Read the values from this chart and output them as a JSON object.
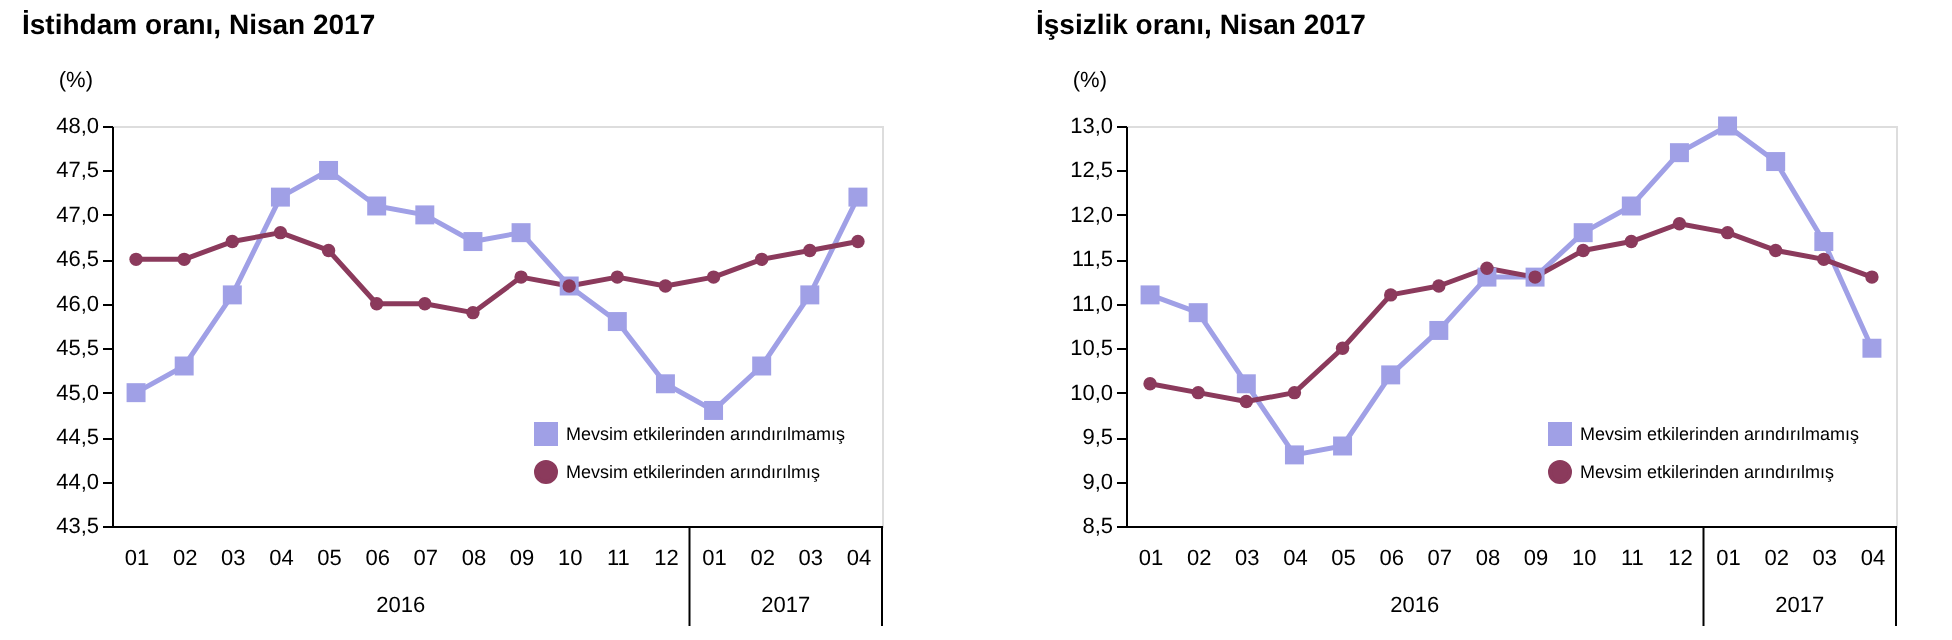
{
  "chart_data": [
    {
      "type": "line",
      "title": "İstihdam oranı, Nisan 2017",
      "ylabel": "(%)",
      "categories": [
        "01",
        "02",
        "03",
        "04",
        "05",
        "06",
        "07",
        "08",
        "09",
        "10",
        "11",
        "12",
        "01",
        "02",
        "03",
        "04"
      ],
      "series": [
        {
          "name": "Mevsim etkilerinden arındırılmamış",
          "color": "#a0a0e6",
          "marker": "square",
          "values": [
            45.0,
            45.3,
            46.1,
            47.2,
            47.5,
            47.1,
            47.0,
            46.7,
            46.8,
            46.2,
            45.8,
            45.1,
            44.8,
            45.3,
            46.1,
            47.2
          ]
        },
        {
          "name": "Mevsim etkilerinden arındırılmış",
          "color": "#8b3a5c",
          "marker": "circle",
          "values": [
            46.5,
            46.5,
            46.7,
            46.8,
            46.6,
            46.0,
            46.0,
            45.9,
            46.3,
            46.2,
            46.3,
            46.2,
            46.3,
            46.5,
            46.6,
            46.7
          ]
        }
      ],
      "ylim": [
        43.5,
        48.0
      ],
      "yticks": [
        {
          "value": 43.5,
          "label": "43,5"
        },
        {
          "value": 44.0,
          "label": "44,0"
        },
        {
          "value": 44.5,
          "label": "44,5"
        },
        {
          "value": 45.0,
          "label": "45,0"
        },
        {
          "value": 45.5,
          "label": "45,5"
        },
        {
          "value": 46.0,
          "label": "46,0"
        },
        {
          "value": 46.5,
          "label": "46,5"
        },
        {
          "value": 47.0,
          "label": "47,0"
        },
        {
          "value": 47.5,
          "label": "47,5"
        },
        {
          "value": 48.0,
          "label": "48,0"
        }
      ],
      "annotations": [
        "2016",
        "2017"
      ],
      "legend": "bottom right",
      "grid": false
    },
    {
      "type": "line",
      "title": "İşsizlik oranı, Nisan 2017",
      "ylabel": "(%)",
      "categories": [
        "01",
        "02",
        "03",
        "04",
        "05",
        "06",
        "07",
        "08",
        "09",
        "10",
        "11",
        "12",
        "01",
        "02",
        "03",
        "04"
      ],
      "series": [
        {
          "name": "Mevsim etkilerinden arındırılmamış",
          "color": "#a0a0e6",
          "marker": "square",
          "values": [
            11.1,
            10.9,
            10.1,
            9.3,
            9.4,
            10.2,
            10.7,
            11.3,
            11.3,
            11.8,
            12.1,
            12.7,
            13.0,
            12.6,
            11.7,
            10.5
          ]
        },
        {
          "name": "Mevsim etkilerinden arındırılmış",
          "color": "#8b3a5c",
          "marker": "circle",
          "values": [
            10.1,
            10.0,
            9.9,
            10.0,
            10.5,
            11.1,
            11.2,
            11.4,
            11.3,
            11.6,
            11.7,
            11.9,
            11.8,
            11.6,
            11.5,
            11.3
          ]
        }
      ],
      "ylim": [
        8.5,
        13.0
      ],
      "yticks": [
        {
          "value": 8.5,
          "label": "8,5"
        },
        {
          "value": 9.0,
          "label": "9,0"
        },
        {
          "value": 9.5,
          "label": "9,5"
        },
        {
          "value": 10.0,
          "label": "10,0"
        },
        {
          "value": 10.5,
          "label": "10,5"
        },
        {
          "value": 11.0,
          "label": "11,0"
        },
        {
          "value": 11.5,
          "label": "11,5"
        },
        {
          "value": 12.0,
          "label": "12,0"
        },
        {
          "value": 12.5,
          "label": "12,5"
        },
        {
          "value": 13.0,
          "label": "13,0"
        }
      ],
      "annotations": [
        "2016",
        "2017"
      ],
      "legend": "bottom right",
      "grid": false
    }
  ]
}
